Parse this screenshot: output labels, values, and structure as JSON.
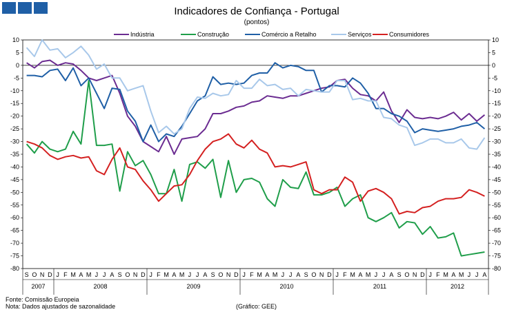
{
  "chart_data": {
    "type": "line",
    "title": "Indicadores de Confiança - Portugal",
    "subtitle": "(pontos)",
    "ylim": [
      -80,
      10
    ],
    "ytick_step": 5,
    "month_labels": [
      "S",
      "O",
      "N",
      "D",
      "J",
      "F",
      "M",
      "A",
      "M",
      "J",
      "J",
      "A",
      "S",
      "O",
      "N",
      "D",
      "J",
      "F",
      "M",
      "A",
      "M",
      "J",
      "J",
      "A",
      "S",
      "O",
      "N",
      "D",
      "J",
      "F",
      "M",
      "A",
      "M",
      "J",
      "J",
      "A",
      "S",
      "O",
      "N",
      "D",
      "J",
      "F",
      "M",
      "A",
      "M",
      "J",
      "J",
      "A",
      "S",
      "O",
      "N",
      "D",
      "J",
      "F",
      "M",
      "A",
      "M",
      "J",
      "J",
      "A"
    ],
    "year_labels": [
      {
        "label": "2007",
        "start": 0,
        "end": 4
      },
      {
        "label": "2008",
        "start": 4,
        "end": 16
      },
      {
        "label": "2009",
        "start": 16,
        "end": 28
      },
      {
        "label": "2010",
        "start": 28,
        "end": 40
      },
      {
        "label": "2011",
        "start": 40,
        "end": 52
      },
      {
        "label": "2012",
        "start": 52,
        "end": 60
      }
    ],
    "series": [
      {
        "name": "Indústria",
        "color": "#6b2c91",
        "values": [
          1,
          -1,
          1.5,
          2,
          0,
          1,
          0.5,
          -2,
          -5,
          -6,
          -5,
          -4,
          -11,
          -20,
          -24,
          -30,
          -32,
          -34,
          -28,
          -35,
          -29,
          -28.5,
          -28,
          -25,
          -19,
          -19,
          -18,
          -16.5,
          -16,
          -14.5,
          -14,
          -12,
          -12.5,
          -13,
          -12,
          -12,
          -11,
          -10,
          -9,
          -8.5,
          -6,
          -5.5,
          -9,
          -11.5,
          -12,
          -14,
          -10.5,
          -18,
          -22.5,
          -17.5,
          -20.5,
          -21,
          -20.5,
          -21,
          -20,
          -18.5,
          -21.5,
          -19,
          -22,
          -19.5
        ]
      },
      {
        "name": "Construção",
        "color": "#1f9e4a",
        "values": [
          -31,
          -34.5,
          -30,
          -33,
          -34,
          -33,
          -26,
          -31,
          -6,
          -31.5,
          -31.5,
          -31,
          -49.5,
          -34,
          -39.5,
          -37.5,
          -43,
          -50.5,
          -50.5,
          -41,
          -53.5,
          -39,
          -38,
          -40.5,
          -37,
          -52,
          -37.5,
          -50,
          -45,
          -44.5,
          -46,
          -52.5,
          -55.5,
          -45,
          -48,
          -48.5,
          -42,
          -51,
          -51,
          -50,
          -48,
          -55.5,
          -52.5,
          -51,
          -60,
          -61.5,
          -60,
          -58,
          -64,
          -61.5,
          -62,
          -66.5,
          -63.5,
          -68,
          -67.5,
          -66,
          -75,
          -74.5,
          -74,
          -73.5
        ]
      },
      {
        "name": "Comércio a Retalho",
        "color": "#1f5fa6",
        "values": [
          -4,
          -4,
          -4.5,
          -2,
          -1.5,
          -6,
          -1,
          -8,
          -5,
          -11,
          -17,
          -9,
          -9.5,
          -18,
          -22,
          -30,
          -23.5,
          -30,
          -27,
          -28,
          -24,
          -19,
          -14,
          -12,
          -4.5,
          -7.5,
          -7,
          -7.5,
          -7,
          -4,
          -3,
          -3,
          1,
          -1,
          0,
          -0.5,
          -2,
          -2,
          -10.5,
          -8,
          -8,
          -8.5,
          -5,
          -7,
          -11,
          -17,
          -17,
          -19,
          -20,
          -22,
          -26.5,
          -25,
          -25.5,
          -26,
          -25.5,
          -25,
          -24,
          -23.5,
          -22.5,
          -25
        ]
      },
      {
        "name": "Serviços",
        "color": "#a8c8ea",
        "values": [
          7,
          3.5,
          10,
          6,
          6.5,
          3,
          5,
          7.5,
          4,
          -1.5,
          0.5,
          -5,
          -5,
          -10,
          -9,
          -8,
          -18,
          -26.5,
          -24,
          -27,
          -25,
          -17,
          -12.5,
          -13,
          -11,
          -12,
          -11.5,
          -6,
          -9,
          -9,
          -5.5,
          -8,
          -7.5,
          -9.5,
          -9,
          -12,
          -9.5,
          -10,
          -10.5,
          -10.5,
          -6,
          -6,
          -13.5,
          -13,
          -14,
          -14,
          -20.5,
          -21,
          -23.5,
          -24.5,
          -31.5,
          -30.5,
          -29,
          -29,
          -30.5,
          -30.5,
          -29,
          -32.5,
          -33,
          -28.5
        ]
      },
      {
        "name": "Consumidores",
        "color": "#d42020",
        "values": [
          -30,
          -31,
          -32.5,
          -35.5,
          -37,
          -36,
          -35.5,
          -36.5,
          -36,
          -41.5,
          -43,
          -37,
          -32.5,
          -40,
          -41,
          -45.5,
          -49,
          -53.5,
          -50.5,
          -47.5,
          -47,
          -43,
          -37.5,
          -33,
          -30,
          -29,
          -27,
          -31,
          -32.5,
          -29.5,
          -33,
          -34.5,
          -40,
          -39.5,
          -40,
          -39,
          -38,
          -49,
          -50.5,
          -49,
          -49,
          -44,
          -46,
          -53.5,
          -49.5,
          -48.5,
          -50,
          -52.5,
          -58.5,
          -57.5,
          -58,
          -56,
          -55.5,
          -53.5,
          -52.5,
          -52.5,
          -52,
          -49,
          -50,
          -51.5
        ]
      }
    ]
  },
  "footer": {
    "source": "Fonte: Comissão Europeia",
    "note": "Nota: Dados ajustados de sazonalidade",
    "credit": "(Gráfico: GEE)"
  }
}
